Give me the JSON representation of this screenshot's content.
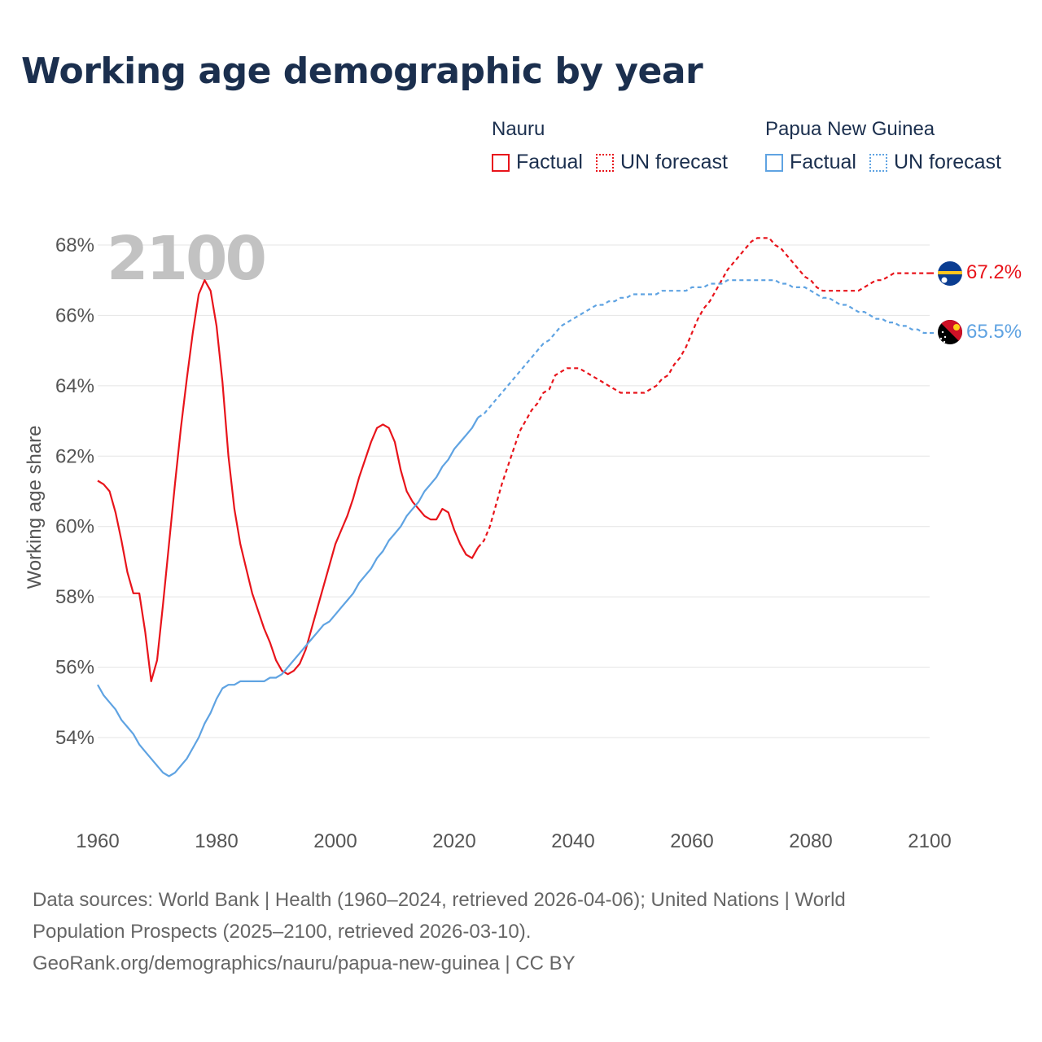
{
  "title": "Working age demographic by year",
  "legend": {
    "groups": [
      {
        "name": "Nauru",
        "color": "#e8141b",
        "factual_label": "Factual",
        "forecast_label": "UN forecast"
      },
      {
        "name": "Papua New Guinea",
        "color": "#5fa3e2",
        "factual_label": "Factual",
        "forecast_label": "UN forecast"
      }
    ]
  },
  "year_watermark": "2100",
  "end_labels": {
    "nauru": "67.2%",
    "png": "65.5%"
  },
  "flag_icons": {
    "nauru": "nauru-flag-icon",
    "png": "papua-new-guinea-flag-icon"
  },
  "footer": {
    "line1": "Data sources: World Bank | Health (1960–2024, retrieved 2026-04-06); United Nations | World",
    "line2": "Population Prospects (2025–2100, retrieved 2026-03-10).",
    "line3": "GeoRank.org/demographics/nauru/papua-new-guinea | CC BY"
  },
  "chart_data": {
    "type": "line",
    "title": "Working age demographic by year",
    "xlabel": "",
    "ylabel": "Working age share",
    "xlim": [
      1960,
      2100
    ],
    "ylim": [
      52,
      69
    ],
    "x_ticks": [
      1960,
      1980,
      2000,
      2020,
      2040,
      2060,
      2080,
      2100
    ],
    "y_ticks": [
      54,
      56,
      58,
      60,
      62,
      64,
      66,
      68
    ],
    "y_tick_labels": [
      "54%",
      "56%",
      "58%",
      "60%",
      "62%",
      "64%",
      "66%",
      "68%"
    ],
    "grid": true,
    "factual_end_year": 2024,
    "series": [
      {
        "name": "Nauru",
        "color": "#e8141b",
        "points": [
          [
            1960,
            61.3
          ],
          [
            1961,
            61.2
          ],
          [
            1962,
            61.0
          ],
          [
            1963,
            60.4
          ],
          [
            1964,
            59.6
          ],
          [
            1965,
            58.7
          ],
          [
            1966,
            58.1
          ],
          [
            1967,
            58.1
          ],
          [
            1968,
            57.0
          ],
          [
            1969,
            55.6
          ],
          [
            1970,
            56.2
          ],
          [
            1971,
            57.8
          ],
          [
            1972,
            59.5
          ],
          [
            1973,
            61.2
          ],
          [
            1974,
            62.8
          ],
          [
            1975,
            64.2
          ],
          [
            1976,
            65.5
          ],
          [
            1977,
            66.6
          ],
          [
            1978,
            67.0
          ],
          [
            1979,
            66.7
          ],
          [
            1980,
            65.7
          ],
          [
            1981,
            64.1
          ],
          [
            1982,
            62.0
          ],
          [
            1983,
            60.5
          ],
          [
            1984,
            59.5
          ],
          [
            1985,
            58.8
          ],
          [
            1986,
            58.1
          ],
          [
            1987,
            57.6
          ],
          [
            1988,
            57.1
          ],
          [
            1989,
            56.7
          ],
          [
            1990,
            56.2
          ],
          [
            1991,
            55.9
          ],
          [
            1992,
            55.8
          ],
          [
            1993,
            55.9
          ],
          [
            1994,
            56.1
          ],
          [
            1995,
            56.5
          ],
          [
            1996,
            57.1
          ],
          [
            1997,
            57.7
          ],
          [
            1998,
            58.3
          ],
          [
            1999,
            58.9
          ],
          [
            2000,
            59.5
          ],
          [
            2001,
            59.9
          ],
          [
            2002,
            60.3
          ],
          [
            2003,
            60.8
          ],
          [
            2004,
            61.4
          ],
          [
            2005,
            61.9
          ],
          [
            2006,
            62.4
          ],
          [
            2007,
            62.8
          ],
          [
            2008,
            62.9
          ],
          [
            2009,
            62.8
          ],
          [
            2010,
            62.4
          ],
          [
            2011,
            61.6
          ],
          [
            2012,
            61.0
          ],
          [
            2013,
            60.7
          ],
          [
            2014,
            60.5
          ],
          [
            2015,
            60.3
          ],
          [
            2016,
            60.2
          ],
          [
            2017,
            60.2
          ],
          [
            2018,
            60.5
          ],
          [
            2019,
            60.4
          ],
          [
            2020,
            59.9
          ],
          [
            2021,
            59.5
          ],
          [
            2022,
            59.2
          ],
          [
            2023,
            59.1
          ],
          [
            2024,
            59.4
          ],
          [
            2025,
            59.6
          ],
          [
            2026,
            60.0
          ],
          [
            2027,
            60.6
          ],
          [
            2028,
            61.2
          ],
          [
            2029,
            61.7
          ],
          [
            2030,
            62.2
          ],
          [
            2031,
            62.7
          ],
          [
            2032,
            63.0
          ],
          [
            2033,
            63.3
          ],
          [
            2034,
            63.5
          ],
          [
            2035,
            63.8
          ],
          [
            2036,
            63.9
          ],
          [
            2037,
            64.3
          ],
          [
            2038,
            64.4
          ],
          [
            2039,
            64.5
          ],
          [
            2040,
            64.5
          ],
          [
            2041,
            64.5
          ],
          [
            2042,
            64.4
          ],
          [
            2043,
            64.3
          ],
          [
            2044,
            64.2
          ],
          [
            2045,
            64.1
          ],
          [
            2046,
            64.0
          ],
          [
            2047,
            63.9
          ],
          [
            2048,
            63.8
          ],
          [
            2049,
            63.8
          ],
          [
            2050,
            63.8
          ],
          [
            2051,
            63.8
          ],
          [
            2052,
            63.8
          ],
          [
            2053,
            63.9
          ],
          [
            2054,
            64.0
          ],
          [
            2055,
            64.2
          ],
          [
            2056,
            64.3
          ],
          [
            2057,
            64.6
          ],
          [
            2058,
            64.8
          ],
          [
            2059,
            65.1
          ],
          [
            2060,
            65.5
          ],
          [
            2061,
            65.9
          ],
          [
            2062,
            66.2
          ],
          [
            2063,
            66.4
          ],
          [
            2064,
            66.7
          ],
          [
            2065,
            67.0
          ],
          [
            2066,
            67.3
          ],
          [
            2067,
            67.5
          ],
          [
            2068,
            67.7
          ],
          [
            2069,
            67.9
          ],
          [
            2070,
            68.1
          ],
          [
            2071,
            68.2
          ],
          [
            2072,
            68.2
          ],
          [
            2073,
            68.2
          ],
          [
            2074,
            68.0
          ],
          [
            2075,
            67.9
          ],
          [
            2076,
            67.7
          ],
          [
            2077,
            67.5
          ],
          [
            2078,
            67.3
          ],
          [
            2079,
            67.1
          ],
          [
            2080,
            67.0
          ],
          [
            2081,
            66.8
          ],
          [
            2082,
            66.7
          ],
          [
            2083,
            66.7
          ],
          [
            2084,
            66.7
          ],
          [
            2085,
            66.7
          ],
          [
            2086,
            66.7
          ],
          [
            2087,
            66.7
          ],
          [
            2088,
            66.7
          ],
          [
            2089,
            66.8
          ],
          [
            2090,
            66.9
          ],
          [
            2091,
            67.0
          ],
          [
            2092,
            67.0
          ],
          [
            2093,
            67.1
          ],
          [
            2094,
            67.2
          ],
          [
            2095,
            67.2
          ],
          [
            2096,
            67.2
          ],
          [
            2097,
            67.2
          ],
          [
            2098,
            67.2
          ],
          [
            2099,
            67.2
          ],
          [
            2100,
            67.2
          ]
        ]
      },
      {
        "name": "Papua New Guinea",
        "color": "#5fa3e2",
        "points": [
          [
            1960,
            55.5
          ],
          [
            1961,
            55.2
          ],
          [
            1962,
            55.0
          ],
          [
            1963,
            54.8
          ],
          [
            1964,
            54.5
          ],
          [
            1965,
            54.3
          ],
          [
            1966,
            54.1
          ],
          [
            1967,
            53.8
          ],
          [
            1968,
            53.6
          ],
          [
            1969,
            53.4
          ],
          [
            1970,
            53.2
          ],
          [
            1971,
            53.0
          ],
          [
            1972,
            52.9
          ],
          [
            1973,
            53.0
          ],
          [
            1974,
            53.2
          ],
          [
            1975,
            53.4
          ],
          [
            1976,
            53.7
          ],
          [
            1977,
            54.0
          ],
          [
            1978,
            54.4
          ],
          [
            1979,
            54.7
          ],
          [
            1980,
            55.1
          ],
          [
            1981,
            55.4
          ],
          [
            1982,
            55.5
          ],
          [
            1983,
            55.5
          ],
          [
            1984,
            55.6
          ],
          [
            1985,
            55.6
          ],
          [
            1986,
            55.6
          ],
          [
            1987,
            55.6
          ],
          [
            1988,
            55.6
          ],
          [
            1989,
            55.7
          ],
          [
            1990,
            55.7
          ],
          [
            1991,
            55.8
          ],
          [
            1992,
            56.0
          ],
          [
            1993,
            56.2
          ],
          [
            1994,
            56.4
          ],
          [
            1995,
            56.6
          ],
          [
            1996,
            56.8
          ],
          [
            1997,
            57.0
          ],
          [
            1998,
            57.2
          ],
          [
            1999,
            57.3
          ],
          [
            2000,
            57.5
          ],
          [
            2001,
            57.7
          ],
          [
            2002,
            57.9
          ],
          [
            2003,
            58.1
          ],
          [
            2004,
            58.4
          ],
          [
            2005,
            58.6
          ],
          [
            2006,
            58.8
          ],
          [
            2007,
            59.1
          ],
          [
            2008,
            59.3
          ],
          [
            2009,
            59.6
          ],
          [
            2010,
            59.8
          ],
          [
            2011,
            60.0
          ],
          [
            2012,
            60.3
          ],
          [
            2013,
            60.5
          ],
          [
            2014,
            60.7
          ],
          [
            2015,
            61.0
          ],
          [
            2016,
            61.2
          ],
          [
            2017,
            61.4
          ],
          [
            2018,
            61.7
          ],
          [
            2019,
            61.9
          ],
          [
            2020,
            62.2
          ],
          [
            2021,
            62.4
          ],
          [
            2022,
            62.6
          ],
          [
            2023,
            62.8
          ],
          [
            2024,
            63.1
          ],
          [
            2025,
            63.2
          ],
          [
            2026,
            63.4
          ],
          [
            2027,
            63.6
          ],
          [
            2028,
            63.8
          ],
          [
            2029,
            64.0
          ],
          [
            2030,
            64.2
          ],
          [
            2031,
            64.4
          ],
          [
            2032,
            64.6
          ],
          [
            2033,
            64.8
          ],
          [
            2034,
            65.0
          ],
          [
            2035,
            65.2
          ],
          [
            2036,
            65.3
          ],
          [
            2037,
            65.5
          ],
          [
            2038,
            65.7
          ],
          [
            2039,
            65.8
          ],
          [
            2040,
            65.9
          ],
          [
            2041,
            66.0
          ],
          [
            2042,
            66.1
          ],
          [
            2043,
            66.2
          ],
          [
            2044,
            66.3
          ],
          [
            2045,
            66.3
          ],
          [
            2046,
            66.4
          ],
          [
            2047,
            66.4
          ],
          [
            2048,
            66.5
          ],
          [
            2049,
            66.5
          ],
          [
            2050,
            66.6
          ],
          [
            2051,
            66.6
          ],
          [
            2052,
            66.6
          ],
          [
            2053,
            66.6
          ],
          [
            2054,
            66.6
          ],
          [
            2055,
            66.7
          ],
          [
            2056,
            66.7
          ],
          [
            2057,
            66.7
          ],
          [
            2058,
            66.7
          ],
          [
            2059,
            66.7
          ],
          [
            2060,
            66.8
          ],
          [
            2061,
            66.8
          ],
          [
            2062,
            66.8
          ],
          [
            2063,
            66.9
          ],
          [
            2064,
            66.9
          ],
          [
            2065,
            66.9
          ],
          [
            2066,
            67.0
          ],
          [
            2067,
            67.0
          ],
          [
            2068,
            67.0
          ],
          [
            2069,
            67.0
          ],
          [
            2070,
            67.0
          ],
          [
            2071,
            67.0
          ],
          [
            2072,
            67.0
          ],
          [
            2073,
            67.0
          ],
          [
            2074,
            67.0
          ],
          [
            2075,
            66.9
          ],
          [
            2076,
            66.9
          ],
          [
            2077,
            66.8
          ],
          [
            2078,
            66.8
          ],
          [
            2079,
            66.8
          ],
          [
            2080,
            66.7
          ],
          [
            2081,
            66.6
          ],
          [
            2082,
            66.5
          ],
          [
            2083,
            66.5
          ],
          [
            2084,
            66.4
          ],
          [
            2085,
            66.3
          ],
          [
            2086,
            66.3
          ],
          [
            2087,
            66.2
          ],
          [
            2088,
            66.1
          ],
          [
            2089,
            66.1
          ],
          [
            2090,
            66.0
          ],
          [
            2091,
            65.9
          ],
          [
            2092,
            65.9
          ],
          [
            2093,
            65.8
          ],
          [
            2094,
            65.8
          ],
          [
            2095,
            65.7
          ],
          [
            2096,
            65.7
          ],
          [
            2097,
            65.6
          ],
          [
            2098,
            65.6
          ],
          [
            2099,
            65.5
          ],
          [
            2100,
            65.5
          ]
        ]
      }
    ]
  }
}
